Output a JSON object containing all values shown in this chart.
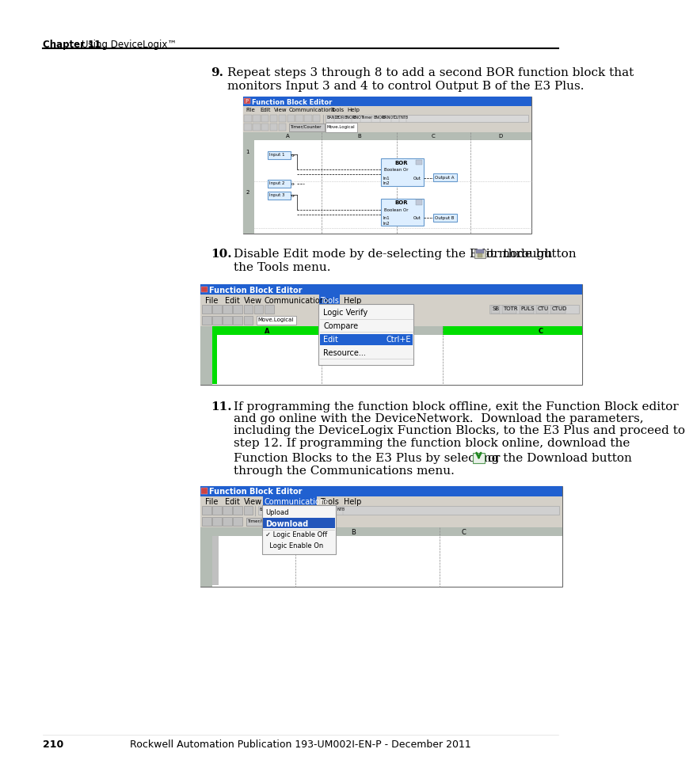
{
  "page_number": "210",
  "footer_text": "Rockwell Automation Publication 193-UM002I-EN-P - December 2011",
  "header_chapter": "Chapter 11",
  "header_title": "Using DeviceLogix™",
  "step9_text_line1": "Repeat steps 3 through 8 to add a second BOR function block that",
  "step9_text_line2": "monitors Input 3 and 4 to control Output B of the E3 Plus.",
  "step10_text_line1": "Disable Edit mode by de-selecting the Edit mode button",
  "step10_text_line2": "or through",
  "step10_text_line3": "the Tools menu.",
  "step11_text_line1": "If programming the function block offline, exit the Function Block editor",
  "step11_text_line2": "and go online with the DeviceNetwork.  Download the parameters,",
  "step11_text_line3": "including the DeviceLogix Function Blocks, to the E3 Plus and proceed to",
  "step11_text_line4": "step 12. If programming the function block online, download the",
  "step11_text_line5": "Function Blocks to the E3 Plus by selecting the Download button",
  "step11_text_line6": "or",
  "step11_text_line7": "through the Communications menu.",
  "bg": "#ffffff",
  "title_blue": "#2060d0",
  "menu_gray": "#d4d0c8",
  "col_header_gray": "#b0b8b0",
  "green_row": "#00dd00",
  "block_blue_fill": "#ddeeff",
  "block_blue_edge": "#6699cc",
  "canvas_white": "#ffffff",
  "download_blue_fill": "#2255bb"
}
